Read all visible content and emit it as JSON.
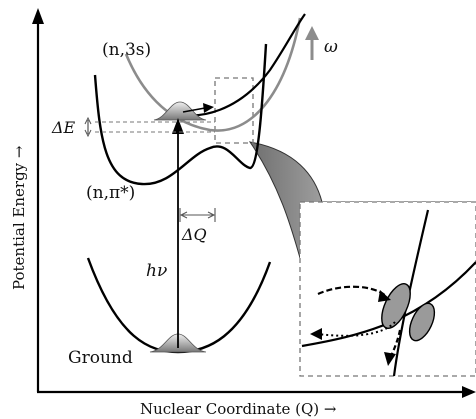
{
  "axes": {
    "y_label": "Potential Energy →",
    "x_label": "Nuclear Coordinate (Q) →"
  },
  "states": {
    "rydberg": "(n,3s)",
    "valence": "(n,π*)",
    "ground": "Ground"
  },
  "symbols": {
    "omega": "ω",
    "delta_e": "ΔE",
    "delta_q": "ΔQ",
    "excitation": "hν"
  },
  "colors": {
    "rydberg_curve": "#8c8c8c",
    "curve": "#000000",
    "dashed_box": "#777777",
    "wavepacket": "#9a9a9a"
  }
}
